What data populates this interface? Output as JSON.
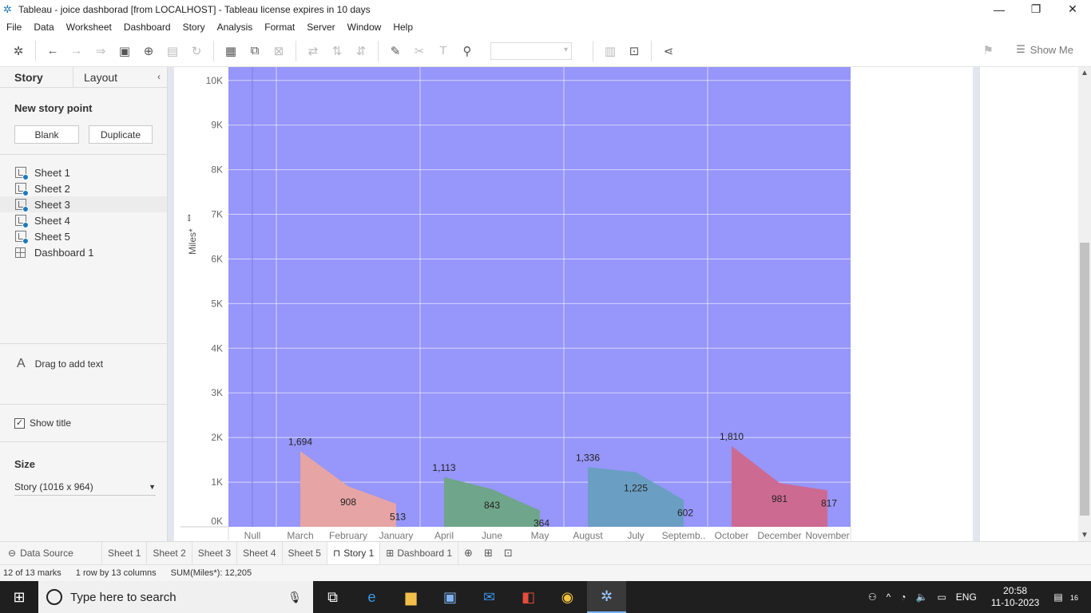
{
  "window": {
    "title": "Tableau - joice dashborad [from LOCALHOST] - Tableau license expires in 10 days",
    "minimize": "—",
    "maximize": "❐",
    "close": "✕"
  },
  "menu": [
    "File",
    "Data",
    "Worksheet",
    "Dashboard",
    "Story",
    "Analysis",
    "Format",
    "Server",
    "Window",
    "Help"
  ],
  "toolbar": {
    "show_me": "Show Me"
  },
  "left_panel": {
    "tabs": {
      "story": "Story",
      "layout": "Layout"
    },
    "new_story_point": "New story point",
    "blank_button": "Blank",
    "duplicate_button": "Duplicate",
    "sheets": [
      {
        "label": "Sheet 1"
      },
      {
        "label": "Sheet 2"
      },
      {
        "label": "Sheet 3"
      },
      {
        "label": "Sheet 4"
      },
      {
        "label": "Sheet 5"
      }
    ],
    "dashboard": "Dashboard 1",
    "drag_to_add_text": "Drag to add text",
    "drag_icon": "A",
    "show_title": "Show title",
    "show_title_checked": true,
    "size_label": "Size",
    "size_value": "Story (1016 x 964)"
  },
  "tabs": {
    "data_source": "Data Source",
    "sheets": [
      "Sheet 1",
      "Sheet 2",
      "Sheet 3",
      "Sheet 4",
      "Sheet 5"
    ],
    "story": "Story 1",
    "dashboard": "Dashboard 1"
  },
  "status": {
    "marks": "12 of 13 marks",
    "layout": "1 row by 13 columns",
    "sum": "SUM(Miles*): 12,205"
  },
  "taskbar": {
    "search_placeholder": "Type here to search",
    "lang": "ENG",
    "time": "20:58",
    "date": "11-10-2023",
    "notifications": "16"
  },
  "chart_data": {
    "type": "area",
    "ylabel": "Miles*",
    "ylim": [
      0,
      10300
    ],
    "yticks": [
      0,
      1000,
      2000,
      3000,
      4000,
      5000,
      6000,
      7000,
      8000,
      9000,
      10000
    ],
    "ytick_labels": [
      "0K",
      "1K",
      "2K",
      "3K",
      "4K",
      "5K",
      "6K",
      "7K",
      "8K",
      "9K",
      "10K"
    ],
    "background": "#9696fb",
    "panes": [
      {
        "categories": [
          "Null"
        ],
        "values": [
          null
        ],
        "labels": [],
        "color": "#9696fb"
      },
      {
        "categories": [
          "March",
          "February",
          "January"
        ],
        "values": [
          1694,
          908,
          513
        ],
        "labels": [
          "1,694",
          "908",
          "513"
        ],
        "color": "#e7a4a4"
      },
      {
        "categories": [
          "April",
          "June",
          "May"
        ],
        "values": [
          1113,
          843,
          364
        ],
        "labels": [
          "1,113",
          "843",
          "364"
        ],
        "color": "#6fa58a"
      },
      {
        "categories": [
          "August",
          "July",
          "Septemb.."
        ],
        "values": [
          1336,
          1225,
          602
        ],
        "labels": [
          "1,336",
          "1,225",
          "602"
        ],
        "color": "#6a9fc3"
      },
      {
        "categories": [
          "October",
          "December",
          "November"
        ],
        "values": [
          1810,
          981,
          817
        ],
        "labels": [
          "1,810",
          "981",
          "817"
        ],
        "color": "#cd6a92"
      }
    ]
  }
}
